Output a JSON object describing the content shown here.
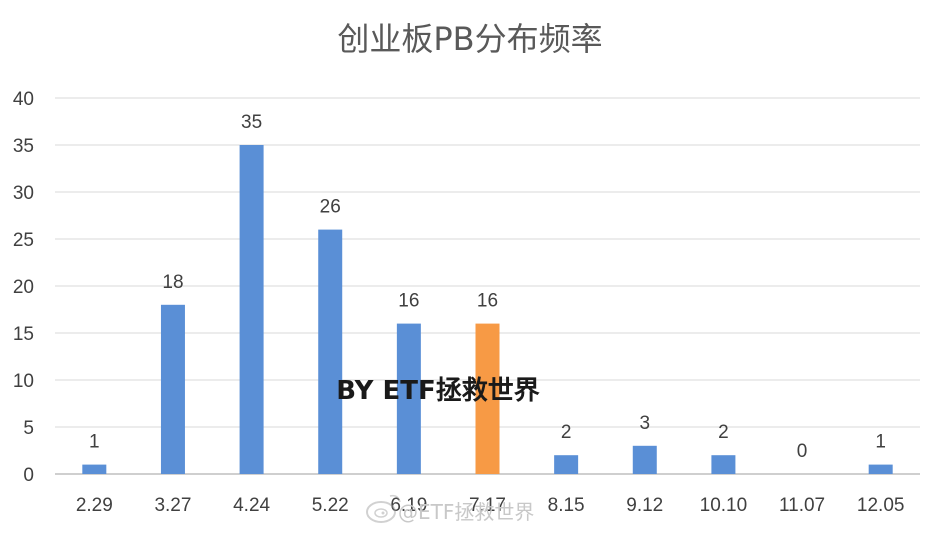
{
  "chart_data": {
    "type": "bar",
    "title": "创业板PB分布频率",
    "categories": [
      "2.29",
      "3.27",
      "4.24",
      "5.22",
      "6.19",
      "7.17",
      "8.15",
      "9.12",
      "10.10",
      "11.07",
      "12.05"
    ],
    "values": [
      1,
      18,
      35,
      26,
      16,
      16,
      2,
      3,
      2,
      0,
      1
    ],
    "highlight_index": 5,
    "ylim": [
      0,
      40
    ],
    "yticks": [
      0,
      5,
      10,
      15,
      20,
      25,
      30,
      35,
      40
    ],
    "grid": true,
    "data_labels": true,
    "colors": {
      "bar": "#5a8fd6",
      "highlight": "#f79a45",
      "grid": "#d9d9d9",
      "axis": "#bfbfbf"
    }
  },
  "overlay": {
    "text": "BY  ETF拯救世界"
  },
  "watermark": {
    "text": "@ETF拯救世界",
    "icon": "weibo-icon"
  }
}
